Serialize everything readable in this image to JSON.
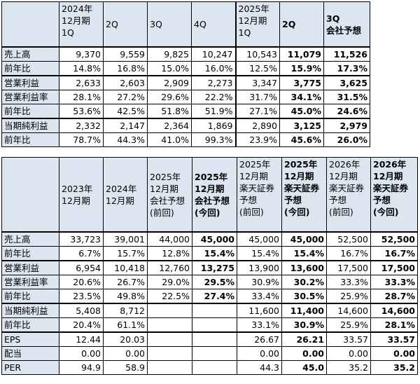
{
  "quarterly": {
    "headers": [
      [
        "2024年",
        "12月期",
        "1Q"
      ],
      [
        "2Q"
      ],
      [
        "3Q"
      ],
      [
        "4Q"
      ],
      [
        "2025年",
        "12月期",
        "1Q"
      ],
      [
        "2Q"
      ],
      [
        "3Q",
        "会社予想"
      ]
    ],
    "rows": [
      {
        "label": "売上高",
        "values": [
          "9,370",
          "9,559",
          "9,825",
          "10,247",
          "10,543",
          "11,079",
          "11,526"
        ]
      },
      {
        "label": "前年比",
        "values": [
          "14.8%",
          "16.8%",
          "15.0%",
          "16.0%",
          "12.5%",
          "15.9%",
          "17.3%"
        ]
      },
      {
        "label": "営業利益",
        "values": [
          "2,633",
          "2,603",
          "2,909",
          "2,273",
          "3,347",
          "3,775",
          "3,625"
        ]
      },
      {
        "label": "営業利益率",
        "values": [
          "28.1%",
          "27.2%",
          "29.6%",
          "22.2%",
          "31.7%",
          "34.1%",
          "31.5%"
        ]
      },
      {
        "label": "前年比",
        "values": [
          "53.6%",
          "42.5%",
          "51.8%",
          "51.9%",
          "27.1%",
          "45.0%",
          "24.6%"
        ]
      },
      {
        "label": "当期純利益",
        "values": [
          "2,332",
          "2,147",
          "2,364",
          "1,869",
          "2,890",
          "3,125",
          "2,979"
        ]
      },
      {
        "label": "前年比",
        "values": [
          "78.7%",
          "44.3%",
          "41.0%",
          "99.3%",
          "23.9%",
          "45.6%",
          "26.0%"
        ]
      }
    ]
  },
  "annual": {
    "headers": [
      [
        "",
        "2023年",
        "12月期"
      ],
      [
        "",
        "2024年",
        "12月期"
      ],
      [
        "2025年",
        "12月期",
        "会社予想",
        "(前回)"
      ],
      [
        "2025年",
        "12月期",
        "会社予想",
        "(今回)"
      ],
      [
        "2025年",
        "12月期",
        "楽天証券",
        "予想",
        "(前回)"
      ],
      [
        "2025年",
        "12月期",
        "楽天証券",
        "予想",
        "(今回)"
      ],
      [
        "2026年",
        "12月期",
        "楽天証券",
        "予想",
        "(前回)"
      ],
      [
        "2026年",
        "12月期",
        "楽天証券",
        "予想",
        "(今回)"
      ]
    ],
    "rows": [
      {
        "label": "売上高",
        "values": [
          "33,723",
          "39,001",
          "44,000",
          "45,000",
          "45,000",
          "45,000",
          "52,500",
          "52,500"
        ]
      },
      {
        "label": "前年比",
        "values": [
          "6.7%",
          "15.7%",
          "12.8%",
          "15.4%",
          "15.4%",
          "15.4%",
          "16.7%",
          "16.7%"
        ]
      },
      {
        "label": "営業利益",
        "values": [
          "6,954",
          "10,418",
          "12,760",
          "13,275",
          "13,900",
          "13,600",
          "17,500",
          "17,500"
        ]
      },
      {
        "label": "営業利益率",
        "values": [
          "20.6%",
          "26.7%",
          "29.0%",
          "29.5%",
          "30.9%",
          "30.2%",
          "33.3%",
          "33.3%"
        ]
      },
      {
        "label": "前年比",
        "values": [
          "23.5%",
          "49.8%",
          "22.5%",
          "27.4%",
          "33.4%",
          "30.5%",
          "25.9%",
          "28.7%"
        ]
      },
      {
        "label": "当期純利益",
        "values": [
          "5,408",
          "8,712",
          "",
          "",
          "11,600",
          "11,400",
          "14,600",
          "14,600"
        ]
      },
      {
        "label": "前年比",
        "values": [
          "20.4%",
          "61.1%",
          "",
          "",
          "33.1%",
          "30.9%",
          "25.9%",
          "28.1%"
        ]
      },
      {
        "label": "EPS",
        "values": [
          "12.44",
          "20.03",
          "",
          "",
          "26.67",
          "26.21",
          "33.57",
          "33.57"
        ]
      },
      {
        "label": "配当",
        "values": [
          "0.00",
          "0.00",
          "",
          "",
          "0.00",
          "0.00",
          "0.00",
          "0.00"
        ]
      },
      {
        "label": "PER",
        "values": [
          "94.9",
          "58.9",
          "",
          "",
          "44.3",
          "45.0",
          "35.2",
          "35.2"
        ]
      }
    ]
  },
  "colors": {
    "header_fill": "#dce6f1",
    "border": "#000000"
  }
}
